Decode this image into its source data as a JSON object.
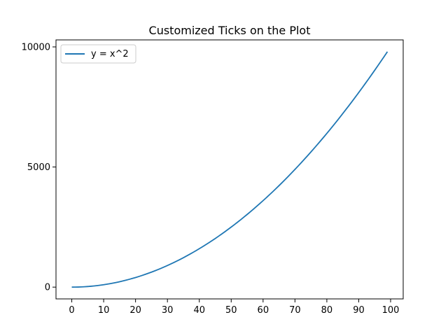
{
  "chart_data": {
    "type": "line",
    "title": "Customized Ticks on the Plot",
    "xlabel": "",
    "ylabel": "",
    "xlim": [
      -4.95,
      103.95
    ],
    "ylim": [
      -490.05,
      10291.05
    ],
    "xticks": [
      0,
      10,
      20,
      30,
      40,
      50,
      60,
      70,
      80,
      90,
      100
    ],
    "xtick_labels": [
      "0",
      "10",
      "20",
      "30",
      "40",
      "50",
      "60",
      "70",
      "80",
      "90",
      "100"
    ],
    "yticks": [
      0,
      5000,
      10000
    ],
    "ytick_labels": [
      "0",
      "5000",
      "10000"
    ],
    "grid": false,
    "legend": {
      "placement": "top-left"
    },
    "series": [
      {
        "name": "y = x^2",
        "color": "#1f77b4",
        "x_start": 0,
        "x_end": 99,
        "x_step": 1,
        "function": "x^2"
      }
    ]
  }
}
